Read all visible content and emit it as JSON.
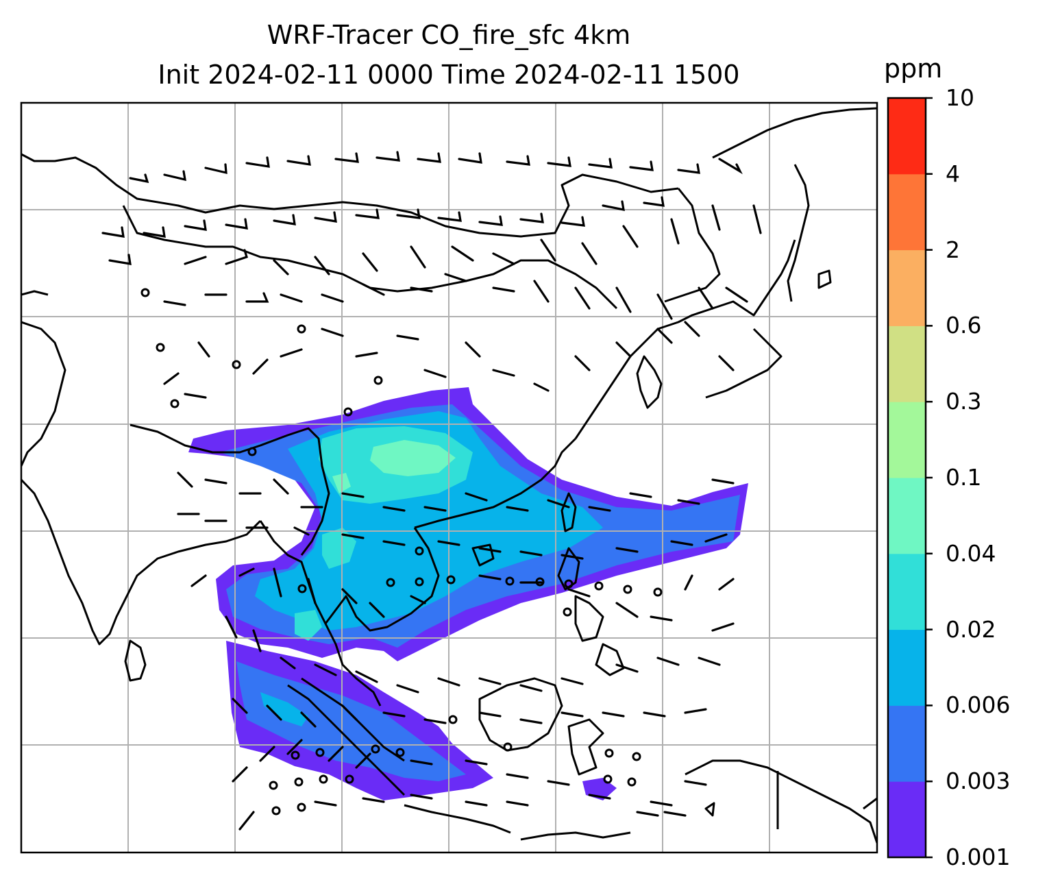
{
  "title": {
    "line1": "WRF-Tracer CO_fire_sfc 4km",
    "line2": "Init 2024-02-11 0000 Time 2024-02-11 1500"
  },
  "colorbar": {
    "unit": "ppm",
    "ticks": [
      "0.001",
      "0.003",
      "0.006",
      "0.02",
      "0.04",
      "0.1",
      "0.3",
      "0.6",
      "2",
      "4",
      "10"
    ],
    "colors": [
      "#6a2cf6",
      "#3575f3",
      "#07b3ea",
      "#31dfd8",
      "#6ff7c3",
      "#a3f89a",
      "#d0e084",
      "#fbaf61",
      "#fe7537",
      "#fe2b15"
    ]
  },
  "map": {
    "contour_levels": {
      "0.001-0.003": "#6a2cf6",
      "0.003-0.006": "#3575f3",
      "0.006-0.02": "#07b3ea",
      "0.02-0.04": "#31dfd8",
      "0.04-0.1": "#6ff7c3"
    },
    "features": [
      "coastlines",
      "country-borders",
      "lat-lon-gridlines",
      "wind-barbs",
      "calm-wind-circles"
    ]
  }
}
